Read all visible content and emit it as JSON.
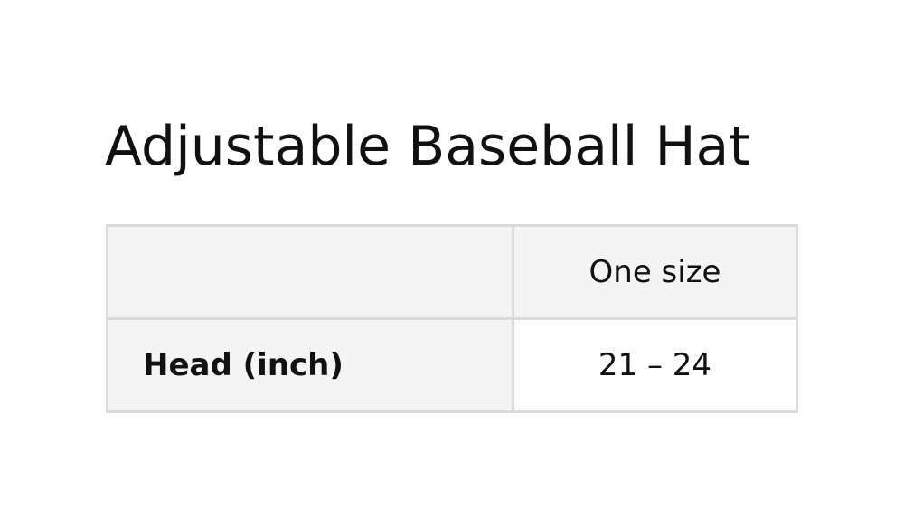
{
  "title": "Adjustable Baseball Hat",
  "size_table": {
    "columns": [
      "",
      "One size"
    ],
    "rows": [
      {
        "label": "Head (inch)",
        "values": [
          "21 – 24"
        ]
      }
    ]
  }
}
